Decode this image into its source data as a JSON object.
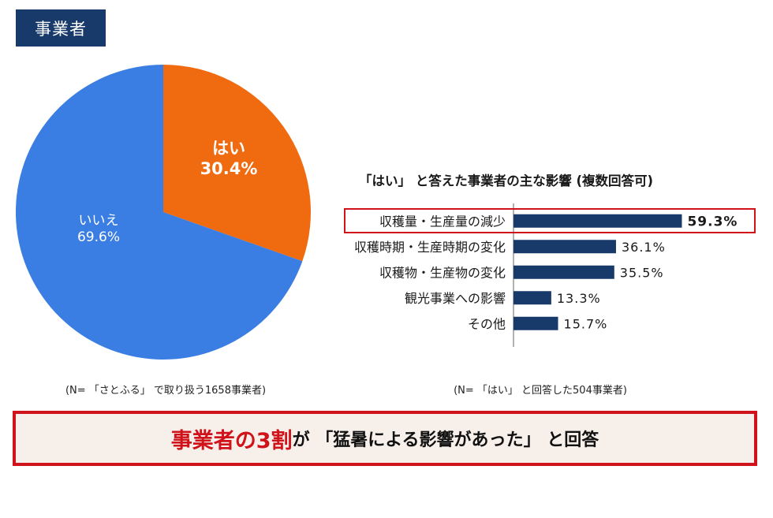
{
  "header": {
    "tag": "事業者"
  },
  "chart_data": [
    {
      "type": "pie",
      "categories": [
        "はい",
        "いいえ"
      ],
      "values": [
        30.4,
        69.6
      ],
      "value_labels": [
        "30.4%",
        "69.6%"
      ],
      "colors": [
        "#f06a0f",
        "#3a7ee3"
      ],
      "note": "(N= 「さとふる」 で取り扱う1658事業者)"
    },
    {
      "type": "bar",
      "orientation": "horizontal",
      "title": "「はい」 と答えた事業者の主な影響 (複数回答可)",
      "categories": [
        "収穫量・生産量の減少",
        "収穫時期・生産時期の変化",
        "収穫物・生産物の変化",
        "観光事業への影響",
        "その他"
      ],
      "values": [
        59.3,
        36.1,
        35.5,
        13.3,
        15.7
      ],
      "value_labels": [
        "59.3%",
        "36.1%",
        "35.5%",
        "13.3%",
        "15.7%"
      ],
      "highlight_index": 0,
      "bar_color": "#183a6b",
      "note": "(N= 「はい」 と回答した504事業者)"
    }
  ],
  "banner": {
    "accent_text": "事業者の3割",
    "rest_text": "が 「猛暑による影響があった」 と回答"
  }
}
